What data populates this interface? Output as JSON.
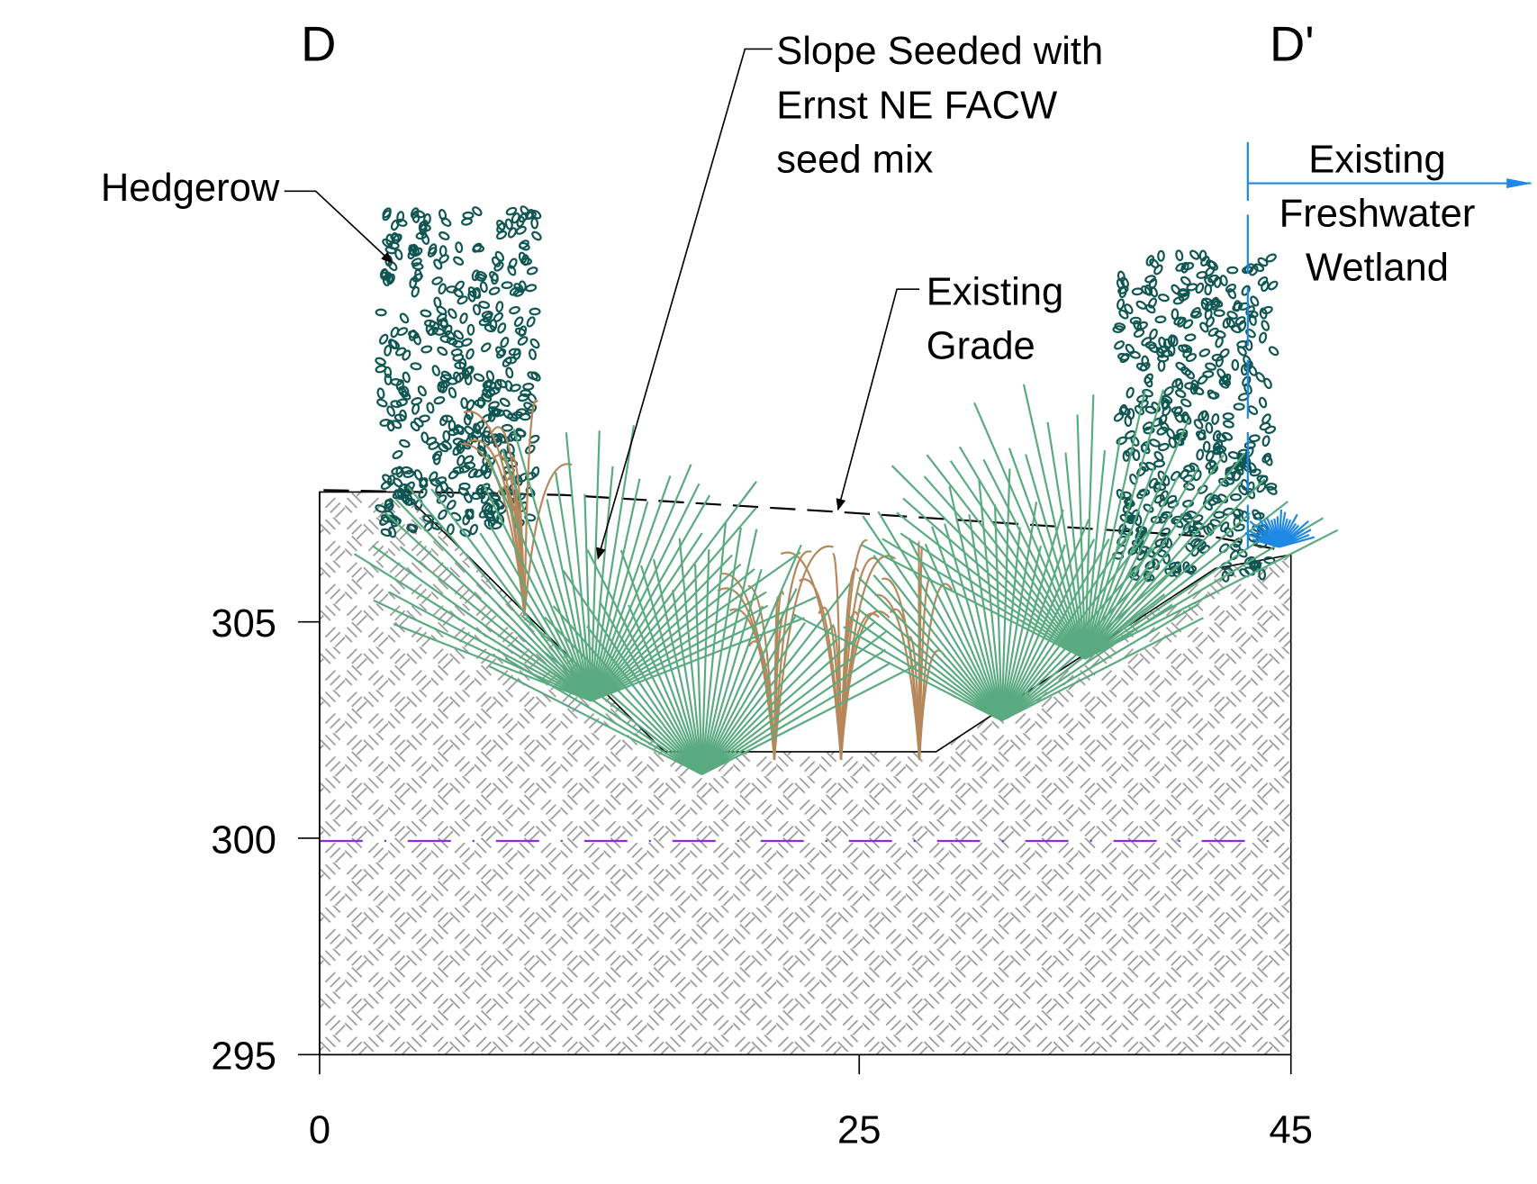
{
  "section": {
    "start_label": "D",
    "end_label": "D'"
  },
  "axes": {
    "x": {
      "lim": [
        0,
        45
      ],
      "ticks": [
        0,
        25,
        45
      ]
    },
    "y": {
      "lim": [
        295,
        308
      ],
      "ticks": [
        305,
        300,
        295
      ]
    }
  },
  "callouts": {
    "hedgerow": [
      "Hedgerow"
    ],
    "seed": [
      "Slope Seeded with",
      "Ernst NE FACW",
      "seed mix"
    ],
    "grade": [
      "Existing",
      "Grade"
    ],
    "wetland": [
      "Existing",
      "Freshwater",
      "Wetland"
    ]
  }
}
